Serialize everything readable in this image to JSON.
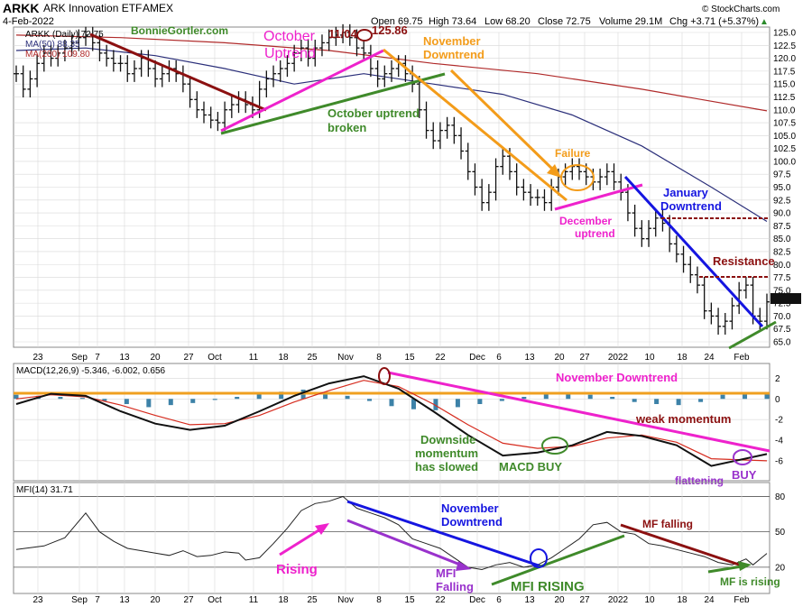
{
  "header": {
    "symbol": "ARKK",
    "name": "ARK Innovation ETF",
    "exchange": "AMEX",
    "date": "4-Feb-2022",
    "open": "Open 69.75",
    "high": "High 73.64",
    "low": "Low 68.20",
    "close": "Close 72.75",
    "volume": "Volume 29.1M",
    "chg": "Chg +3.71 (+5.37%)",
    "chg_arrow": "▲",
    "brand": "© StockCharts.com"
  },
  "legend": {
    "series_label": "ARKK (Daily) 72.75",
    "ma50_label": "MA(50) 88.35",
    "ma200_label": "MA(200) 109.80",
    "watermark": "BonnieGortler.com",
    "macd_label": "MACD(12,26,9) -5.346, -6.002, 0.656",
    "mfi_label": "MFI(14) 31.71"
  },
  "colors": {
    "price": "#111111",
    "ma50": "#2b2f7a",
    "ma200": "#b02a2a",
    "macd": "#111111",
    "signal": "#d62c1f",
    "hist": "#3d82a8",
    "zero_line": "#f0a020",
    "mfi": "#222222",
    "dark_red": "#8b1010",
    "magenta": "#ee22cc",
    "green": "#3f8a2a",
    "orange": "#f39c1a",
    "blue": "#1515e0",
    "purple": "#9932cc",
    "grid": "#d8d8d8"
  },
  "annotations": {
    "october_uptrend": "October\nUptrend",
    "high_date": "11/04",
    "high_value": "125.86",
    "november_downtrend": "November\nDowntrend",
    "october_broken": "October uptrend\nbroken",
    "failure": "Failure",
    "december_uptrend": "December\nuptrend",
    "january_downtrend": "January\nDowntrend",
    "resistance": "Resistance",
    "macd_november_downtrend": "November Downtrend",
    "weak_momentum": "weak momentum",
    "downside_slowed": "Downside\nmomentum\nhas slowed",
    "macd_buy": "MACD BUY",
    "flattening": "flattening",
    "buy": "BUY",
    "rising": "Rising",
    "mfi_november_downtrend": "November\nDowntrend",
    "mfi_falling": "MFI\nFalling",
    "mfi_rising": "MFI RISING",
    "mf_falling": "MF falling",
    "mf_is_rising": "MF is rising"
  },
  "chart_data": [
    {
      "type": "ohlc",
      "panel": "price",
      "series": [
        {
          "name": "ARKK (Daily)",
          "points": [
            [
              0,
              117
            ],
            [
              2,
              114
            ],
            [
              4,
              116
            ],
            [
              6,
              119
            ],
            [
              8,
              121
            ],
            [
              10,
              120
            ],
            [
              12,
              121
            ],
            [
              14,
              122
            ],
            [
              16,
              123
            ],
            [
              18,
              124
            ],
            [
              20,
              124.5
            ],
            [
              22,
              123
            ],
            [
              24,
              121
            ],
            [
              26,
              120
            ],
            [
              28,
              119
            ],
            [
              30,
              119
            ],
            [
              32,
              117
            ],
            [
              34,
              118
            ],
            [
              36,
              120
            ],
            [
              38,
              118
            ],
            [
              40,
              116
            ],
            [
              42,
              117
            ],
            [
              44,
              118
            ],
            [
              46,
              117
            ],
            [
              48,
              115
            ],
            [
              50,
              112
            ],
            [
              52,
              110
            ],
            [
              54,
              109
            ],
            [
              56,
              108
            ],
            [
              58,
              107.5
            ],
            [
              60,
              110
            ],
            [
              62,
              111
            ],
            [
              64,
              112
            ],
            [
              66,
              111
            ],
            [
              68,
              110
            ],
            [
              70,
              114
            ],
            [
              72,
              116
            ],
            [
              74,
              117
            ],
            [
              76,
              118
            ],
            [
              78,
              119
            ],
            [
              80,
              121
            ],
            [
              82,
              122
            ],
            [
              84,
              120
            ],
            [
              86,
              122
            ],
            [
              88,
              123
            ],
            [
              90,
              124
            ],
            [
              92,
              124.5
            ],
            [
              94,
              125
            ],
            [
              96,
              124
            ],
            [
              98,
              122
            ],
            [
              100,
              121
            ],
            [
              102,
              118
            ],
            [
              104,
              116
            ],
            [
              106,
              117
            ],
            [
              108,
              118
            ],
            [
              110,
              119
            ],
            [
              112,
              117
            ],
            [
              114,
              115
            ],
            [
              116,
              110
            ],
            [
              118,
              106
            ],
            [
              120,
              104
            ],
            [
              122,
              106
            ],
            [
              124,
              107
            ],
            [
              126,
              105
            ],
            [
              128,
              102
            ],
            [
              130,
              98
            ],
            [
              132,
              95
            ],
            [
              134,
              92
            ],
            [
              136,
              94
            ],
            [
              138,
              99
            ],
            [
              140,
              101
            ],
            [
              142,
              98
            ],
            [
              144,
              95
            ],
            [
              146,
              94
            ],
            [
              148,
              93
            ],
            [
              150,
              93
            ],
            [
              152,
              92
            ],
            [
              154,
              95
            ],
            [
              156,
              97
            ],
            [
              158,
              98
            ],
            [
              160,
              99
            ],
            [
              162,
              98
            ],
            [
              164,
              97
            ],
            [
              166,
              96
            ],
            [
              168,
              97
            ],
            [
              170,
              98
            ],
            [
              172,
              96
            ],
            [
              174,
              94
            ],
            [
              176,
              90
            ],
            [
              178,
              87
            ],
            [
              180,
              85
            ],
            [
              182,
              87
            ],
            [
              184,
              89
            ],
            [
              186,
              88
            ],
            [
              188,
              84
            ],
            [
              190,
              82
            ],
            [
              192,
              80
            ],
            [
              194,
              78
            ],
            [
              196,
              76
            ],
            [
              198,
              71
            ],
            [
              200,
              70
            ],
            [
              202,
              68
            ],
            [
              204,
              69
            ],
            [
              206,
              72
            ],
            [
              208,
              75
            ],
            [
              210,
              76
            ],
            [
              212,
              70
            ],
            [
              214,
              69
            ],
            [
              216,
              72.75
            ]
          ]
        },
        {
          "name": "MA(50)",
          "points": [
            [
              0,
              121.5
            ],
            [
              20,
              122
            ],
            [
              40,
              120.5
            ],
            [
              60,
              118
            ],
            [
              80,
              115
            ],
            [
              100,
              117
            ],
            [
              120,
              115
            ],
            [
              140,
              113
            ],
            [
              160,
              109
            ],
            [
              180,
              103
            ],
            [
              200,
              95
            ],
            [
              216,
              88.35
            ]
          ]
        },
        {
          "name": "MA(200)",
          "points": [
            [
              0,
              124.5
            ],
            [
              30,
              124
            ],
            [
              60,
              123
            ],
            [
              90,
              121.5
            ],
            [
              120,
              119
            ],
            [
              150,
              117
            ],
            [
              180,
              114
            ],
            [
              216,
              109.8
            ]
          ]
        }
      ],
      "x_tick_labels": [
        "23",
        "Sep",
        "7",
        "13",
        "20",
        "27",
        "Oct",
        "11",
        "18",
        "25",
        "Nov",
        "8",
        "15",
        "22",
        "Dec",
        "6",
        "13",
        "20",
        "27",
        "2022",
        "10",
        "18",
        "24",
        "Feb"
      ],
      "y_tick_labels": [
        "125.0",
        "122.5",
        "120.0",
        "117.5",
        "115.0",
        "112.5",
        "110.0",
        "107.5",
        "105.0",
        "102.5",
        "100.0",
        "97.5",
        "95.0",
        "92.5",
        "90.0",
        "87.5",
        "85.0",
        "82.5",
        "80.0",
        "77.5",
        "75.0",
        "72.5",
        "70.0",
        "67.5",
        "65.0"
      ],
      "ylim": [
        64,
        127
      ]
    },
    {
      "type": "line",
      "panel": "macd",
      "series": [
        {
          "name": "MACD",
          "points": [
            [
              0,
              -0.5
            ],
            [
              10,
              0.5
            ],
            [
              20,
              0.3
            ],
            [
              30,
              -1.2
            ],
            [
              40,
              -2.4
            ],
            [
              50,
              -3.0
            ],
            [
              60,
              -2.6
            ],
            [
              70,
              -1.2
            ],
            [
              80,
              0.3
            ],
            [
              90,
              1.5
            ],
            [
              100,
              2.2
            ],
            [
              110,
              1.0
            ],
            [
              120,
              -1.2
            ],
            [
              130,
              -3.5
            ],
            [
              140,
              -5.5
            ],
            [
              150,
              -5.2
            ],
            [
              160,
              -4.5
            ],
            [
              170,
              -3.2
            ],
            [
              180,
              -3.6
            ],
            [
              190,
              -4.5
            ],
            [
              200,
              -6.5
            ],
            [
              216,
              -5.346
            ]
          ]
        },
        {
          "name": "Signal",
          "points": [
            [
              0,
              0
            ],
            [
              10,
              0.4
            ],
            [
              20,
              0.2
            ],
            [
              30,
              -0.6
            ],
            [
              40,
              -1.6
            ],
            [
              50,
              -2.5
            ],
            [
              60,
              -2.4
            ],
            [
              70,
              -1.6
            ],
            [
              80,
              -0.3
            ],
            [
              90,
              0.8
            ],
            [
              100,
              1.8
            ],
            [
              110,
              1.2
            ],
            [
              120,
              -0.5
            ],
            [
              130,
              -2.5
            ],
            [
              140,
              -4.3
            ],
            [
              150,
              -4.8
            ],
            [
              160,
              -4.6
            ],
            [
              170,
              -3.8
            ],
            [
              180,
              -3.5
            ],
            [
              190,
              -4.2
            ],
            [
              200,
              -5.8
            ],
            [
              216,
              -6.002
            ]
          ]
        }
      ],
      "histogram": [
        0.4,
        0.3,
        0.2,
        0.1,
        -0.2,
        -0.5,
        -0.8,
        -0.6,
        -0.4,
        -0.1,
        0.2,
        0.5,
        0.7,
        0.9,
        0.6,
        0.3,
        -0.2,
        -0.7,
        -1.0,
        -1.1,
        -0.8,
        -0.5,
        -0.2,
        0.2,
        0.5,
        0.6,
        0.4,
        0.2,
        -0.3,
        -0.5,
        -0.6,
        -0.3,
        0.4,
        0.6,
        0.656
      ],
      "y_tick_labels": [
        "2",
        "0",
        "-2",
        "-4",
        "-6"
      ],
      "ylim": [
        -7.5,
        3
      ]
    },
    {
      "type": "line",
      "panel": "mfi",
      "series": [
        {
          "name": "MFI(14)",
          "points": [
            [
              0,
              35
            ],
            [
              8,
              38
            ],
            [
              14,
              45
            ],
            [
              20,
              66
            ],
            [
              24,
              50
            ],
            [
              28,
              42
            ],
            [
              32,
              36
            ],
            [
              36,
              34
            ],
            [
              40,
              32
            ],
            [
              44,
              30
            ],
            [
              48,
              34
            ],
            [
              52,
              29
            ],
            [
              56,
              30
            ],
            [
              60,
              33
            ],
            [
              64,
              32
            ],
            [
              66,
              26
            ],
            [
              70,
              28
            ],
            [
              74,
              40
            ],
            [
              78,
              53
            ],
            [
              82,
              68
            ],
            [
              86,
              74
            ],
            [
              90,
              76
            ],
            [
              94,
              80
            ],
            [
              98,
              70
            ],
            [
              102,
              66
            ],
            [
              106,
              62
            ],
            [
              110,
              56
            ],
            [
              114,
              44
            ],
            [
              118,
              40
            ],
            [
              122,
              36
            ],
            [
              126,
              28
            ],
            [
              130,
              20
            ],
            [
              134,
              18
            ],
            [
              138,
              22
            ],
            [
              142,
              24
            ],
            [
              146,
              20
            ],
            [
              150,
              22
            ],
            [
              154,
              28
            ],
            [
              158,
              36
            ],
            [
              162,
              44
            ],
            [
              166,
              56
            ],
            [
              170,
              58
            ],
            [
              174,
              50
            ],
            [
              178,
              48
            ],
            [
              182,
              40
            ],
            [
              186,
              38
            ],
            [
              190,
              35
            ],
            [
              194,
              32
            ],
            [
              198,
              29
            ],
            [
              202,
              24
            ],
            [
              206,
              22
            ],
            [
              210,
              27
            ],
            [
              212,
              22
            ],
            [
              216,
              31.71
            ]
          ]
        }
      ],
      "y_tick_labels": [
        "80",
        "50",
        "20"
      ],
      "ylim": [
        0,
        88
      ]
    }
  ]
}
